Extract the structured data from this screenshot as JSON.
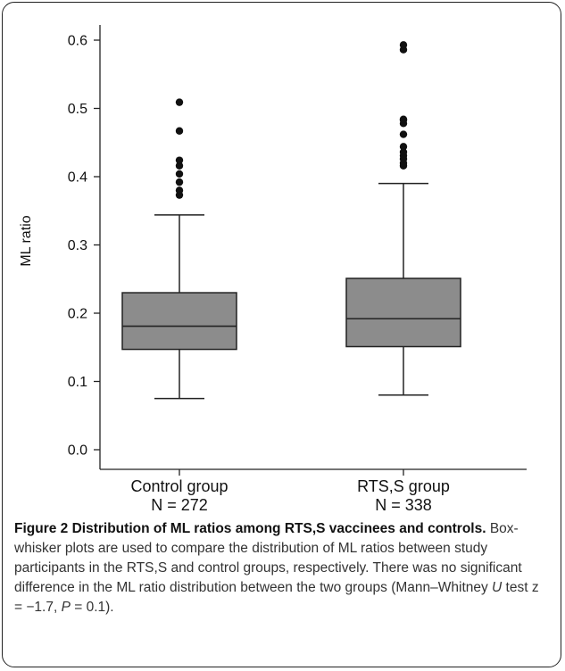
{
  "chart_data": {
    "type": "box",
    "ylabel": "ML ratio",
    "xlabel": "",
    "ylim": [
      0.0,
      0.6
    ],
    "yticks": [
      "0.0",
      "0.1",
      "0.2",
      "0.3",
      "0.4",
      "0.5",
      "0.6"
    ],
    "grid": false,
    "box_color": "#8c8c8c",
    "groups": [
      {
        "label": "Control group",
        "n_label": "N = 272",
        "whisker_low": 0.075,
        "q1": 0.147,
        "median": 0.181,
        "q3": 0.23,
        "whisker_high": 0.344,
        "outliers": [
          0.373,
          0.38,
          0.392,
          0.404,
          0.416,
          0.424,
          0.467,
          0.509
        ]
      },
      {
        "label": "RTS,S group",
        "n_label": "N = 338",
        "whisker_low": 0.08,
        "q1": 0.151,
        "median": 0.192,
        "q3": 0.251,
        "whisker_high": 0.39,
        "outliers": [
          0.416,
          0.42,
          0.426,
          0.431,
          0.436,
          0.444,
          0.462,
          0.478,
          0.483,
          0.484,
          0.586,
          0.593
        ]
      }
    ]
  },
  "caption": {
    "title": "Figure 2 Distribution of ML ratios among RTS,S vaccinees and controls.",
    "body_before_u": " Box-whisker plots are used to compare the distribution of ML ratios between study participants in the RTS,S and control groups, respectively. There was no significant difference in the ML ratio distribution between the two groups (Mann–Whitney ",
    "u_symbol": "U",
    "body_after_u": " test z = −1.7, ",
    "p_symbol": "P",
    "body_end": " = 0.1)."
  }
}
